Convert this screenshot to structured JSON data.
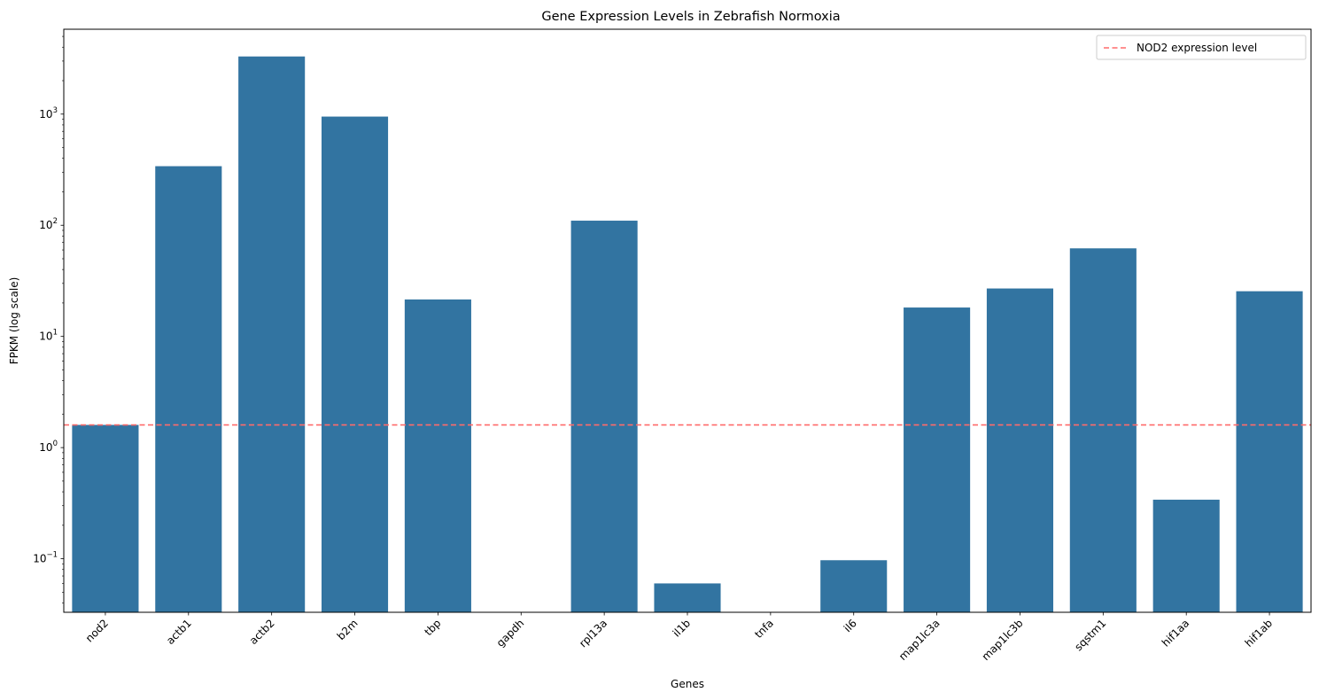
{
  "chart_data": {
    "type": "bar",
    "title": "Gene Expression Levels in Zebrafish Normoxia",
    "xlabel": "Genes",
    "ylabel": "FPKM (log scale)",
    "y_scale": "log",
    "ylim": [
      0.033,
      5800
    ],
    "grid": false,
    "legend_position": "top-right",
    "bar_color": "#3274a1",
    "categories": [
      "nod2",
      "actb1",
      "actb2",
      "b2m",
      "tbp",
      "gapdh",
      "rpl13a",
      "il1b",
      "tnfa",
      "il6",
      "map1lc3a",
      "map1lc3b",
      "sqstm1",
      "hif1aa",
      "hif1ab"
    ],
    "values": [
      1.6,
      340,
      3300,
      950,
      21.5,
      0,
      110,
      0.06,
      0,
      0.097,
      18.2,
      27,
      62,
      0.34,
      25.5
    ],
    "y_ticks": [
      {
        "value": 0.1,
        "base": "10",
        "exp": "−1"
      },
      {
        "value": 1,
        "base": "10",
        "exp": "0"
      },
      {
        "value": 10,
        "base": "10",
        "exp": "1"
      },
      {
        "value": 100,
        "base": "10",
        "exp": "2"
      },
      {
        "value": 1000,
        "base": "10",
        "exp": "3"
      }
    ],
    "reference_line": {
      "label": "NOD2 expression level",
      "value": 1.6,
      "color": "#ff6b6b",
      "style": "dashed"
    }
  }
}
